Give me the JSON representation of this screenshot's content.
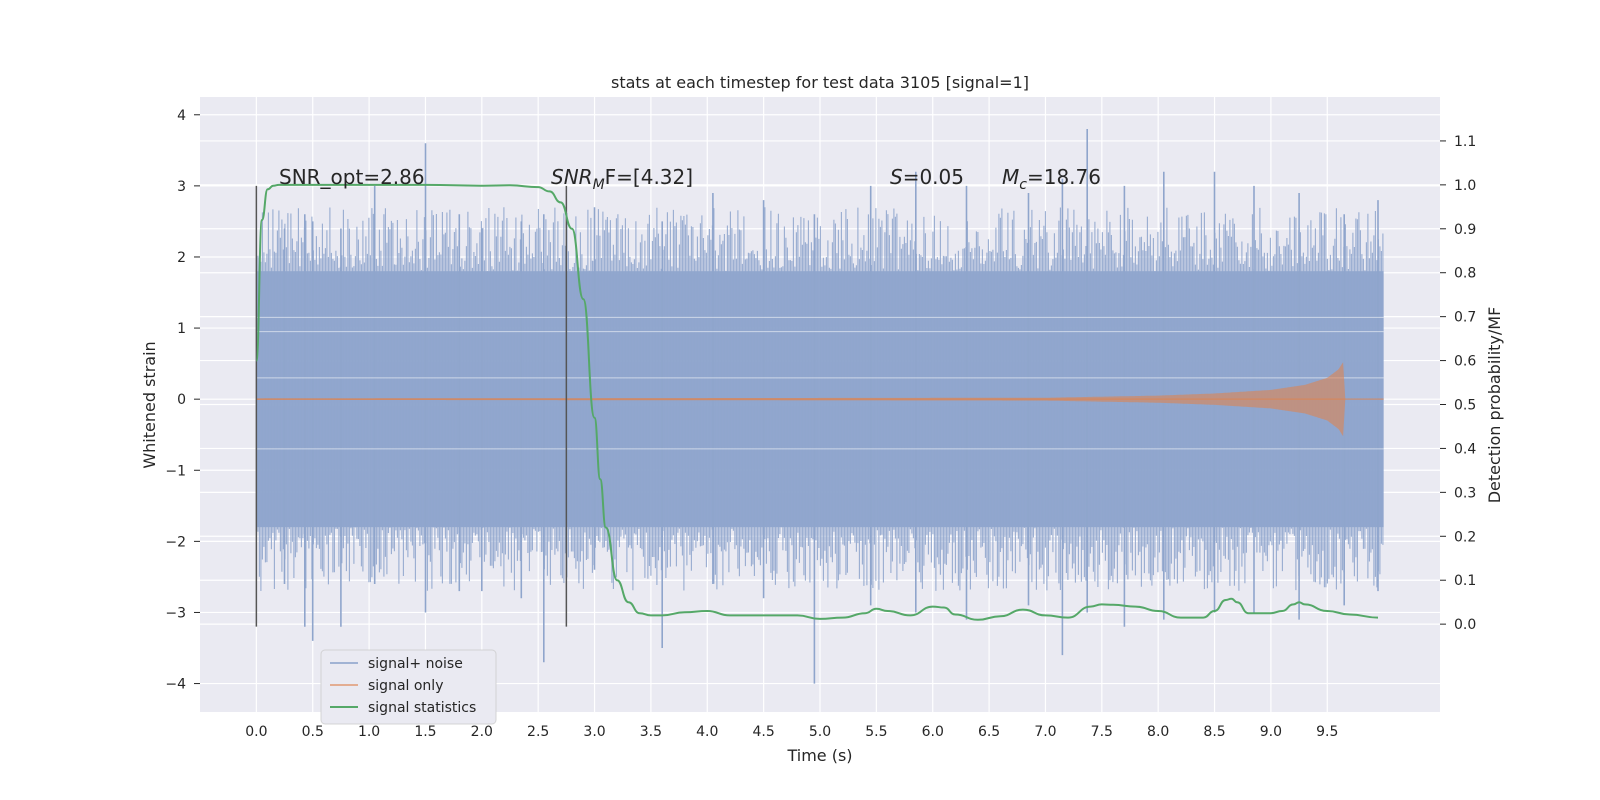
{
  "chart_data": {
    "type": "line",
    "title": "stats at each timestep for test data 3105 [signal=1]",
    "xlabel": "Time (s)",
    "ylabel_left": "Whitened strain",
    "ylabel_right": "Detection probability/MF",
    "xlim": [
      -0.5,
      10.5
    ],
    "ylim_left": [
      -4.4,
      4.25
    ],
    "ylim_right": [
      -0.2,
      1.2
    ],
    "x_ticks": [
      "0.0",
      "0.5",
      "1.0",
      "1.5",
      "2.0",
      "2.5",
      "3.0",
      "3.5",
      "4.0",
      "4.5",
      "5.0",
      "5.5",
      "6.0",
      "6.5",
      "7.0",
      "7.5",
      "8.0",
      "8.5",
      "9.0",
      "9.5"
    ],
    "y_left_ticks": [
      "4",
      "3",
      "2",
      "1",
      "0",
      "−1",
      "−2",
      "−3",
      "−4"
    ],
    "y_right_ticks": [
      "1.1",
      "1.0",
      "0.9",
      "0.8",
      "0.7",
      "0.6",
      "0.5",
      "0.4",
      "0.3",
      "0.2",
      "0.1",
      "0.0"
    ],
    "grid": true,
    "legend_position": "lower-left",
    "annotations": {
      "snr_opt": "SNR_opt=2.86",
      "snr_mf_sym": "SNR",
      "snr_mf_sub": "M",
      "snr_mf_rest": "F=[4.32]",
      "s_sym": "S",
      "s_rest": "=0.05",
      "mc_sym": "M",
      "mc_sub": "c",
      "mc_rest": "=18.76"
    },
    "vertical_markers": [
      0.0,
      2.75
    ],
    "series": [
      {
        "name": "signal+ noise",
        "color": "#8fa5cc",
        "description_range": [
          0.0,
          10.0
        ],
        "envelope_core": 1.8,
        "spikes": [
          {
            "x": 0.25,
            "hi": 2.4,
            "lo": -2.6
          },
          {
            "x": 0.43,
            "hi": 2.6,
            "lo": -3.2
          },
          {
            "x": 0.5,
            "hi": 2.5,
            "lo": -3.4
          },
          {
            "x": 0.75,
            "hi": 2.4,
            "lo": -3.2
          },
          {
            "x": 1.05,
            "hi": 3.0,
            "lo": -2.6
          },
          {
            "x": 1.5,
            "hi": 3.6,
            "lo": -3.0
          },
          {
            "x": 1.8,
            "hi": 2.6,
            "lo": -2.7
          },
          {
            "x": 2.0,
            "hi": 2.4,
            "lo": -2.7
          },
          {
            "x": 2.35,
            "hi": 2.5,
            "lo": -2.8
          },
          {
            "x": 2.55,
            "hi": 2.6,
            "lo": -3.7
          },
          {
            "x": 3.0,
            "hi": 2.7,
            "lo": -2.4
          },
          {
            "x": 3.6,
            "hi": 2.5,
            "lo": -3.5
          },
          {
            "x": 4.05,
            "hi": 2.9,
            "lo": -2.6
          },
          {
            "x": 4.5,
            "hi": 2.8,
            "lo": -2.8
          },
          {
            "x": 4.95,
            "hi": 2.6,
            "lo": -4.0
          },
          {
            "x": 5.45,
            "hi": 3.0,
            "lo": -2.9
          },
          {
            "x": 5.85,
            "hi": 3.2,
            "lo": -3.0
          },
          {
            "x": 6.3,
            "hi": 3.0,
            "lo": -3.1
          },
          {
            "x": 6.85,
            "hi": 2.9,
            "lo": -2.9
          },
          {
            "x": 7.15,
            "hi": 3.1,
            "lo": -3.6
          },
          {
            "x": 7.37,
            "hi": 3.8,
            "lo": -3.0
          },
          {
            "x": 7.7,
            "hi": 3.0,
            "lo": -3.2
          },
          {
            "x": 8.05,
            "hi": 3.2,
            "lo": -3.1
          },
          {
            "x": 8.5,
            "hi": 3.2,
            "lo": -3.0
          },
          {
            "x": 8.85,
            "hi": 3.0,
            "lo": -3.0
          },
          {
            "x": 9.25,
            "hi": 2.9,
            "lo": -3.1
          },
          {
            "x": 9.65,
            "hi": 2.6,
            "lo": -2.9
          },
          {
            "x": 9.95,
            "hi": 2.8,
            "lo": -2.7
          }
        ]
      },
      {
        "name": "signal only",
        "color": "#dd8452",
        "x": [
          0.0,
          7.0,
          8.0,
          8.5,
          9.0,
          9.3,
          9.5,
          9.6,
          9.64,
          9.66
        ],
        "amplitude": [
          0.01,
          0.02,
          0.05,
          0.08,
          0.13,
          0.2,
          0.3,
          0.42,
          0.52,
          0.0
        ]
      },
      {
        "name": "signal statistics",
        "color": "#55a868",
        "axis": "right",
        "x": [
          0.0,
          0.05,
          0.1,
          0.15,
          0.2,
          0.3,
          0.5,
          1.0,
          1.5,
          2.0,
          2.25,
          2.5,
          2.6,
          2.7,
          2.8,
          2.9,
          3.0,
          3.05,
          3.1,
          3.2,
          3.3,
          3.4,
          3.5,
          3.6,
          3.8,
          4.0,
          4.2,
          4.5,
          4.8,
          5.0,
          5.2,
          5.4,
          5.5,
          5.6,
          5.8,
          6.0,
          6.1,
          6.2,
          6.4,
          6.6,
          6.8,
          7.0,
          7.2,
          7.4,
          7.5,
          7.6,
          7.8,
          8.0,
          8.2,
          8.4,
          8.5,
          8.6,
          8.65,
          8.7,
          8.8,
          9.0,
          9.1,
          9.2,
          9.25,
          9.3,
          9.5,
          9.7,
          9.95
        ],
        "y": [
          0.6,
          0.92,
          0.99,
          0.998,
          1.0,
          1.0,
          1.0,
          1.0,
          1.0,
          0.998,
          0.999,
          0.995,
          0.985,
          0.96,
          0.9,
          0.74,
          0.47,
          0.33,
          0.22,
          0.1,
          0.05,
          0.025,
          0.02,
          0.02,
          0.027,
          0.03,
          0.02,
          0.02,
          0.02,
          0.012,
          0.015,
          0.025,
          0.035,
          0.03,
          0.02,
          0.04,
          0.038,
          0.022,
          0.01,
          0.018,
          0.033,
          0.02,
          0.015,
          0.04,
          0.045,
          0.044,
          0.04,
          0.03,
          0.015,
          0.015,
          0.03,
          0.055,
          0.058,
          0.05,
          0.025,
          0.025,
          0.03,
          0.045,
          0.05,
          0.045,
          0.03,
          0.022,
          0.015
        ]
      }
    ]
  },
  "legend": {
    "items": [
      {
        "label": "signal+ noise",
        "color": "#8fa5cc"
      },
      {
        "label": "signal only",
        "color": "#dd8452"
      },
      {
        "label": "signal statistics",
        "color": "#55a868"
      }
    ]
  }
}
